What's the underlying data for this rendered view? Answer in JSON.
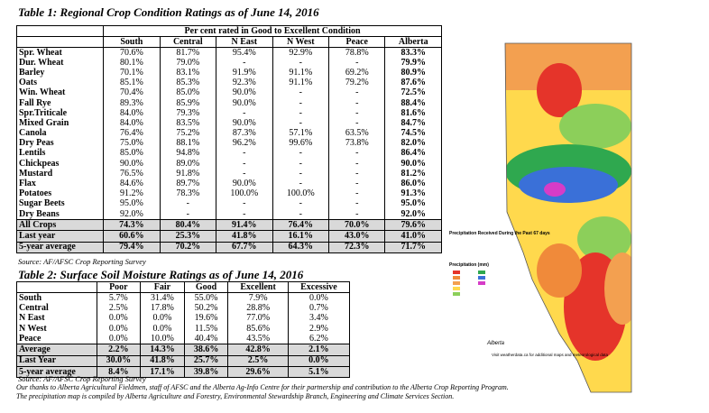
{
  "table1": {
    "title": "Table 1: Regional Crop Condition Ratings as of June 14, 2016",
    "group_header": "Per cent rated in Good to Excellent Condition",
    "columns": [
      "South",
      "Central",
      "N East",
      "N West",
      "Peace",
      "Alberta"
    ],
    "rows": [
      [
        "Spr. Wheat",
        "70.6%",
        "81.7%",
        "95.4%",
        "92.9%",
        "78.8%",
        "83.3%"
      ],
      [
        "Dur. Wheat",
        "80.1%",
        "79.0%",
        "-",
        "-",
        "-",
        "79.9%"
      ],
      [
        "Barley",
        "70.1%",
        "83.1%",
        "91.9%",
        "91.1%",
        "69.2%",
        "80.9%"
      ],
      [
        "Oats",
        "85.1%",
        "85.3%",
        "92.3%",
        "91.1%",
        "79.2%",
        "87.6%"
      ],
      [
        "Win. Wheat",
        "70.4%",
        "85.0%",
        "90.0%",
        "-",
        "-",
        "72.5%"
      ],
      [
        "Fall Rye",
        "89.3%",
        "85.9%",
        "90.0%",
        "-",
        "-",
        "88.4%"
      ],
      [
        "Spr.Triticale",
        "84.0%",
        "79.3%",
        "-",
        "-",
        "-",
        "81.6%"
      ],
      [
        "Mixed Grain",
        "84.0%",
        "83.5%",
        "90.0%",
        "-",
        "-",
        "84.7%"
      ],
      [
        "Canola",
        "76.4%",
        "75.2%",
        "87.3%",
        "57.1%",
        "63.5%",
        "74.5%"
      ],
      [
        "Dry Peas",
        "75.0%",
        "88.1%",
        "96.2%",
        "99.6%",
        "73.8%",
        "82.0%"
      ],
      [
        "Lentils",
        "85.0%",
        "94.8%",
        "-",
        "-",
        "-",
        "86.4%"
      ],
      [
        "Chickpeas",
        "90.0%",
        "89.0%",
        "-",
        "-",
        "-",
        "90.0%"
      ],
      [
        "Mustard",
        "76.5%",
        "91.8%",
        "-",
        "-",
        "-",
        "81.2%"
      ],
      [
        "Flax",
        "84.6%",
        "89.7%",
        "90.0%",
        "-",
        "-",
        "86.0%"
      ],
      [
        "Potatoes",
        "91.2%",
        "78.3%",
        "100.0%",
        "100.0%",
        "-",
        "91.3%"
      ],
      [
        "Sugar Beets",
        "95.0%",
        "-",
        "-",
        "-",
        "-",
        "95.0%"
      ],
      [
        "Dry Beans",
        "92.0%",
        "-",
        "-",
        "-",
        "-",
        "92.0%"
      ]
    ],
    "summary_rows": [
      [
        "All Crops",
        "74.3%",
        "80.4%",
        "91.4%",
        "76.4%",
        "70.0%",
        "79.6%"
      ],
      [
        "Last year",
        "60.6%",
        "25.3%",
        "41.8%",
        "16.1%",
        "43.0%",
        "41.0%"
      ],
      [
        "5-year average",
        "79.4%",
        "70.2%",
        "67.7%",
        "64.3%",
        "72.3%",
        "71.7%"
      ]
    ],
    "source": "Source: AF/AFSC Crop Reporting Survey"
  },
  "table2": {
    "title": "Table 2: Surface Soil Moisture Ratings as of June 14, 2016",
    "columns": [
      "Poor",
      "Fair",
      "Good",
      "Excellent",
      "Excessive"
    ],
    "rows": [
      [
        "South",
        "5.7%",
        "31.4%",
        "55.0%",
        "7.9%",
        "0.0%"
      ],
      [
        "Central",
        "2.5%",
        "17.8%",
        "50.2%",
        "28.8%",
        "0.7%"
      ],
      [
        "N East",
        "0.0%",
        "0.0%",
        "19.6%",
        "77.0%",
        "3.4%"
      ],
      [
        "N West",
        "0.0%",
        "0.0%",
        "11.5%",
        "85.6%",
        "2.9%"
      ],
      [
        "Peace",
        "0.0%",
        "10.0%",
        "40.4%",
        "43.5%",
        "6.2%"
      ]
    ],
    "summary_rows": [
      [
        "Average",
        "2.2%",
        "14.3%",
        "38.6%",
        "42.8%",
        "2.1%"
      ],
      [
        "Last Year",
        "30.0%",
        "41.8%",
        "25.7%",
        "2.5%",
        "0.0%"
      ],
      [
        "5-year average",
        "8.4%",
        "17.1%",
        "39.8%",
        "29.6%",
        "5.1%"
      ]
    ],
    "source": "Source: AF/AFSC Crop Reporting Survey"
  },
  "notes": [
    "Our thanks to Alberta Agricultural Fieldmen, staff of AFSC and the Alberta Ag-Info Centre for their partnership and contribution to the Alberta Crop Reporting Program.",
    "The precipitation map is compiled by Alberta Agriculture and Forestry, Environmental Stewardship Branch, Engineering and Climate Services Section."
  ],
  "map": {
    "legend_title": "Precipitation Received During the Past 67 days",
    "scale_title": "Precipitation (mm)",
    "footer": "Visit weatherdata.ca for additional maps and meteorological data",
    "logo": "Alberta"
  }
}
